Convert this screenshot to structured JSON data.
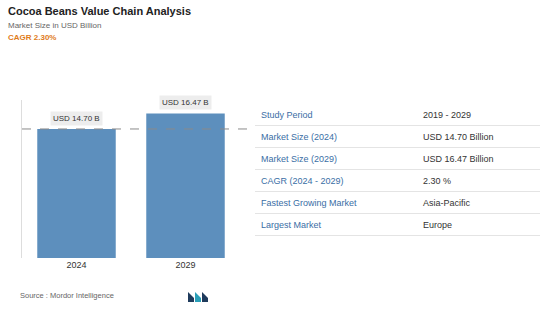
{
  "chart_data": {
    "type": "bar",
    "title": "Cocoa Beans Value Chain Analysis",
    "subtitle": "Market Size in USD Billion",
    "annotations": [
      {
        "text": "CAGR 2.30%"
      }
    ],
    "categories": [
      "2024",
      "2029"
    ],
    "values": [
      14.7,
      16.47
    ],
    "value_labels": [
      "USD 14.70 B",
      "USD 16.47 B"
    ],
    "data_labels": true,
    "color": "#5d8fbd",
    "ylim": [
      0,
      18
    ],
    "tick_labels": "x",
    "grid": false
  },
  "table": {
    "rows": [
      [
        "Study Period",
        "2019 - 2029"
      ],
      [
        "Market Size (2024)",
        "USD 14.70 Billion"
      ],
      [
        "Market Size (2029)",
        "USD 16.47 Billion"
      ],
      [
        "CAGR (2024 - 2029)",
        "2.30 %"
      ],
      [
        "Fastest Growing Market",
        "Asia-Pacific"
      ],
      [
        "Largest Market",
        "Europe"
      ]
    ]
  },
  "source": "Source : Mordor Intelligence"
}
